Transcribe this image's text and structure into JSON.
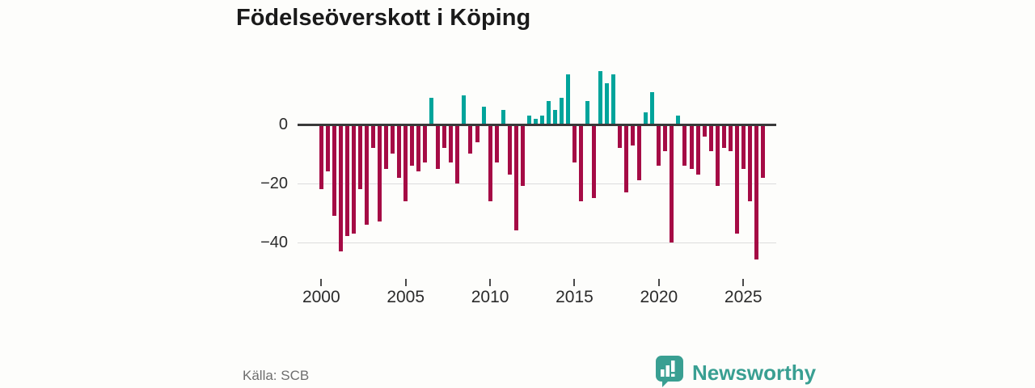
{
  "title": "Födelseöverskott i Köping",
  "source": "Källa: SCB",
  "brand": {
    "name": "Newsworthy",
    "color": "#399f92",
    "icon": "bar-chart-speech-bubble-icon"
  },
  "colors": {
    "positive_bar": "#00a49b",
    "negative_bar": "#a50b45",
    "zero_axis": "#3a3a3a",
    "gridline": "#dcdcdc",
    "background": "#fdfdfb"
  },
  "chart_data": {
    "type": "bar",
    "title": "Födelseöverskott i Köping",
    "xlabel": "",
    "ylabel": "",
    "x_tick_labels": [
      "2000",
      "2005",
      "2010",
      "2015",
      "2020",
      "2025"
    ],
    "y_tick_labels": [
      "0",
      "−20",
      "−40"
    ],
    "y_tick_values": [
      0,
      -20,
      -40
    ],
    "ylim": [
      -48,
      20
    ],
    "x_start_year": 2000,
    "x_end_year": 2026,
    "grid": "horizontal-only",
    "legend": "none",
    "values": [
      -22,
      -16,
      -31,
      -43,
      -38,
      -37,
      -22,
      -34,
      -8,
      -33,
      -15,
      -10,
      -18,
      -26,
      -14,
      -16,
      -13,
      9,
      -15,
      -8,
      -13,
      -20,
      10,
      -10,
      -6,
      6,
      -26,
      -13,
      5,
      -17,
      -36,
      -21,
      3,
      2,
      3,
      8,
      5,
      9,
      17,
      -13,
      -26,
      8,
      -25,
      18,
      14,
      17,
      -8,
      -23,
      -7,
      -19,
      4,
      11,
      -14,
      -9,
      -40,
      3,
      -14,
      -15,
      -17,
      -4,
      -9,
      -21,
      -8,
      -9,
      -37,
      -15,
      -26,
      -46,
      -18
    ]
  }
}
